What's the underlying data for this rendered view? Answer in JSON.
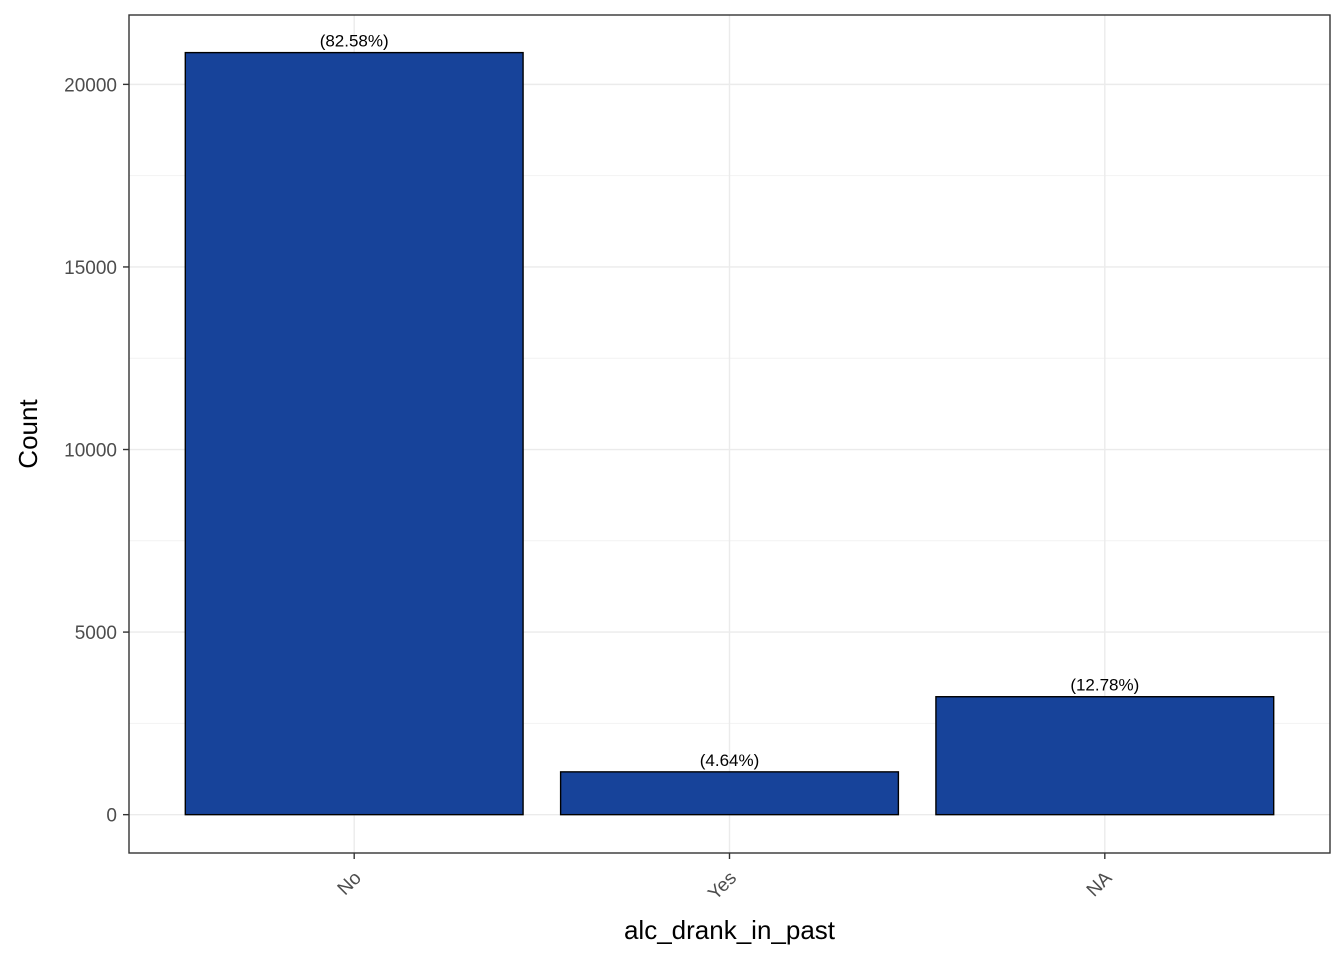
{
  "chart_data": {
    "type": "bar",
    "categories": [
      "No",
      "Yes",
      "NA"
    ],
    "values": [
      20870,
      1172,
      3230
    ],
    "data_labels": [
      "(82.58%)",
      "(4.64%)",
      "(12.78%)"
    ],
    "xlabel": "alc_drank_in_past",
    "ylabel": "Count",
    "ylim": [
      -1050,
      21900
    ],
    "yticks": [
      0,
      5000,
      10000,
      15000,
      20000
    ],
    "ytick_labels": [
      "0",
      "5000",
      "10000",
      "15000",
      "20000"
    ],
    "grid": true,
    "bar_color": "#17439a",
    "bar_outline": "#000000"
  }
}
